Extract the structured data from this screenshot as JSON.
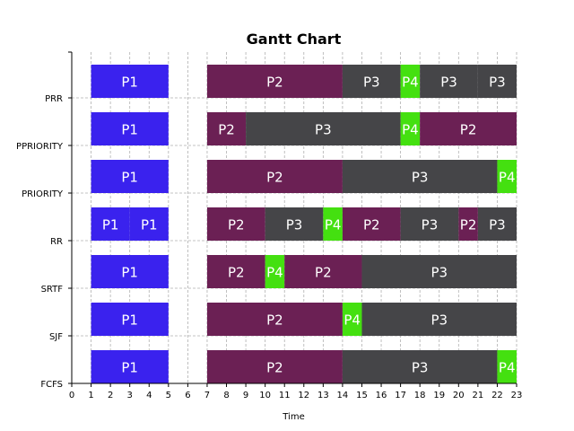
{
  "chart_data": {
    "type": "gantt",
    "title": "Gantt Chart",
    "xlabel": "Time",
    "ylabel": "",
    "xlim": [
      0,
      23
    ],
    "x_ticks": [
      0,
      1,
      2,
      3,
      4,
      5,
      6,
      7,
      8,
      9,
      10,
      11,
      12,
      13,
      14,
      15,
      16,
      17,
      18,
      19,
      20,
      21,
      22,
      23
    ],
    "grid": true,
    "rows": [
      "FCFS",
      "SJF",
      "SRTF",
      "RR",
      "PRIORITY",
      "PPRIORITY",
      "PRR"
    ],
    "colors": {
      "P1": "#3a22ee",
      "P2": "#6b2054",
      "P3": "#454548",
      "P4": "#44e010"
    },
    "tasks": [
      {
        "row": "FCFS",
        "label": "P1",
        "start": 1,
        "end": 5
      },
      {
        "row": "FCFS",
        "label": "P2",
        "start": 7,
        "end": 14
      },
      {
        "row": "FCFS",
        "label": "P3",
        "start": 14,
        "end": 22
      },
      {
        "row": "FCFS",
        "label": "P4",
        "start": 22,
        "end": 23
      },
      {
        "row": "SJF",
        "label": "P1",
        "start": 1,
        "end": 5
      },
      {
        "row": "SJF",
        "label": "P2",
        "start": 7,
        "end": 14
      },
      {
        "row": "SJF",
        "label": "P4",
        "start": 14,
        "end": 15
      },
      {
        "row": "SJF",
        "label": "P3",
        "start": 15,
        "end": 23
      },
      {
        "row": "SRTF",
        "label": "P1",
        "start": 1,
        "end": 5
      },
      {
        "row": "SRTF",
        "label": "P2",
        "start": 7,
        "end": 10
      },
      {
        "row": "SRTF",
        "label": "P4",
        "start": 10,
        "end": 11
      },
      {
        "row": "SRTF",
        "label": "P2",
        "start": 11,
        "end": 15
      },
      {
        "row": "SRTF",
        "label": "P3",
        "start": 15,
        "end": 23
      },
      {
        "row": "RR",
        "label": "P1",
        "start": 1,
        "end": 3
      },
      {
        "row": "RR",
        "label": "P1",
        "start": 3,
        "end": 5
      },
      {
        "row": "RR",
        "label": "P2",
        "start": 7,
        "end": 10
      },
      {
        "row": "RR",
        "label": "P3",
        "start": 10,
        "end": 13
      },
      {
        "row": "RR",
        "label": "P4",
        "start": 13,
        "end": 14
      },
      {
        "row": "RR",
        "label": "P2",
        "start": 14,
        "end": 17
      },
      {
        "row": "RR",
        "label": "P3",
        "start": 17,
        "end": 20
      },
      {
        "row": "RR",
        "label": "P2",
        "start": 20,
        "end": 21
      },
      {
        "row": "RR",
        "label": "P3",
        "start": 21,
        "end": 23
      },
      {
        "row": "PRIORITY",
        "label": "P1",
        "start": 1,
        "end": 5
      },
      {
        "row": "PRIORITY",
        "label": "P2",
        "start": 7,
        "end": 14
      },
      {
        "row": "PRIORITY",
        "label": "P3",
        "start": 14,
        "end": 22
      },
      {
        "row": "PRIORITY",
        "label": "P4",
        "start": 22,
        "end": 23
      },
      {
        "row": "PPRIORITY",
        "label": "P1",
        "start": 1,
        "end": 5
      },
      {
        "row": "PPRIORITY",
        "label": "P2",
        "start": 7,
        "end": 9
      },
      {
        "row": "PPRIORITY",
        "label": "P3",
        "start": 9,
        "end": 17
      },
      {
        "row": "PPRIORITY",
        "label": "P4",
        "start": 17,
        "end": 18
      },
      {
        "row": "PPRIORITY",
        "label": "P2",
        "start": 18,
        "end": 23
      },
      {
        "row": "PRR",
        "label": "P1",
        "start": 1,
        "end": 5
      },
      {
        "row": "PRR",
        "label": "P2",
        "start": 7,
        "end": 14
      },
      {
        "row": "PRR",
        "label": "P3",
        "start": 14,
        "end": 17
      },
      {
        "row": "PRR",
        "label": "P4",
        "start": 17,
        "end": 18
      },
      {
        "row": "PRR",
        "label": "P3",
        "start": 18,
        "end": 21
      },
      {
        "row": "PRR",
        "label": "P3",
        "start": 21,
        "end": 23
      }
    ]
  }
}
